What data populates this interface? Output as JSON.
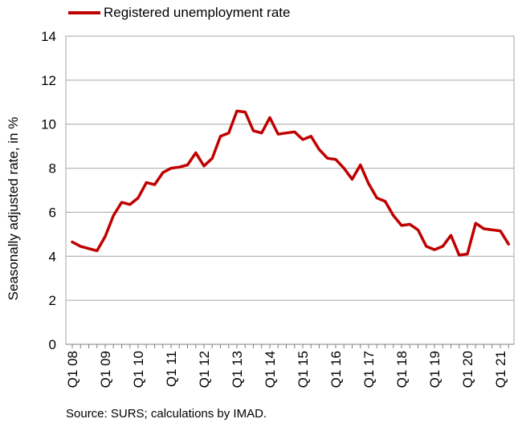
{
  "chart_data": {
    "type": "line",
    "legend": {
      "label": "Registered unemployment rate",
      "placement": "top-left"
    },
    "ylabel": "Seasonally adjusted rate, in %",
    "ylim": [
      0,
      14
    ],
    "yticks": [
      0,
      2,
      4,
      6,
      8,
      10,
      12,
      14
    ],
    "grid": true,
    "xtick_labels": [
      "Q1 08",
      "Q1 09",
      "Q1 10",
      "Q1 11",
      "Q1 12",
      "Q1 13",
      "Q1 14",
      "Q1 15",
      "Q1 16",
      "Q1 17",
      "Q1 18",
      "Q1 19",
      "Q1 20",
      "Q1 21"
    ],
    "source": "Source: SURS; calculations by IMAD.",
    "color": "#c00000",
    "series": [
      {
        "name": "Registered unemployment rate",
        "values": [
          4.65,
          4.45,
          4.35,
          4.25,
          4.9,
          5.85,
          6.45,
          6.35,
          6.65,
          7.35,
          7.25,
          7.8,
          8.0,
          8.05,
          8.15,
          8.7,
          8.1,
          8.45,
          9.45,
          9.6,
          10.6,
          10.55,
          9.7,
          9.6,
          10.3,
          9.55,
          9.6,
          9.65,
          9.3,
          9.45,
          8.85,
          8.45,
          8.4,
          8.0,
          7.5,
          8.15,
          7.3,
          6.65,
          6.5,
          5.85,
          5.4,
          5.45,
          5.2,
          4.45,
          4.3,
          4.45,
          4.95,
          4.05,
          4.1,
          5.5,
          5.25,
          5.2,
          5.15,
          4.55
        ]
      }
    ]
  }
}
